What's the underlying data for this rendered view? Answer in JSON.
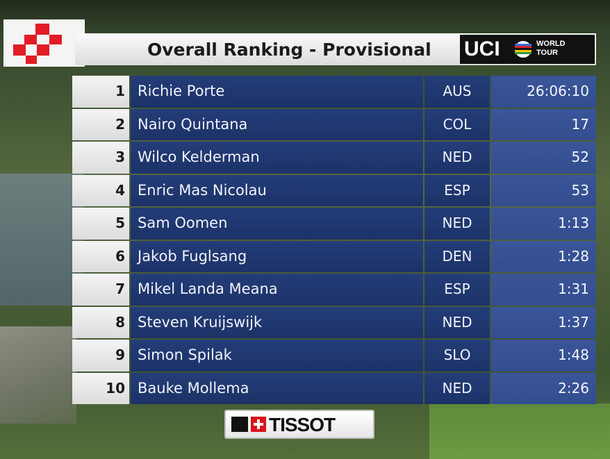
{
  "header": {
    "title": "Overall Ranking - Provisional",
    "uci_label": "UCI",
    "world_tour_line1": "WORLD",
    "world_tour_line2": "TOUR"
  },
  "colors": {
    "logo_red": "#e11c24",
    "row_blue": "#243d78",
    "time_blue": "#3a5598"
  },
  "ranking": [
    {
      "rank": "1",
      "name": "Richie Porte",
      "nation": "AUS",
      "time": "26:06:10"
    },
    {
      "rank": "2",
      "name": "Nairo Quintana",
      "nation": "COL",
      "time": "17"
    },
    {
      "rank": "3",
      "name": "Wilco Kelderman",
      "nation": "NED",
      "time": "52"
    },
    {
      "rank": "4",
      "name": "Enric Mas Nicolau",
      "nation": "ESP",
      "time": "53"
    },
    {
      "rank": "5",
      "name": "Sam Oomen",
      "nation": "NED",
      "time": "1:13"
    },
    {
      "rank": "6",
      "name": "Jakob Fuglsang",
      "nation": "DEN",
      "time": "1:28"
    },
    {
      "rank": "7",
      "name": "Mikel Landa Meana",
      "nation": "ESP",
      "time": "1:31"
    },
    {
      "rank": "8",
      "name": "Steven Kruijswijk",
      "nation": "NED",
      "time": "1:37"
    },
    {
      "rank": "9",
      "name": "Simon Spilak",
      "nation": "SLO",
      "time": "1:48"
    },
    {
      "rank": "10",
      "name": "Bauke Mollema",
      "nation": "NED",
      "time": "2:26"
    }
  ],
  "sponsor": {
    "name": "TISSOT",
    "logo_icon": "swiss-cross-icon"
  }
}
